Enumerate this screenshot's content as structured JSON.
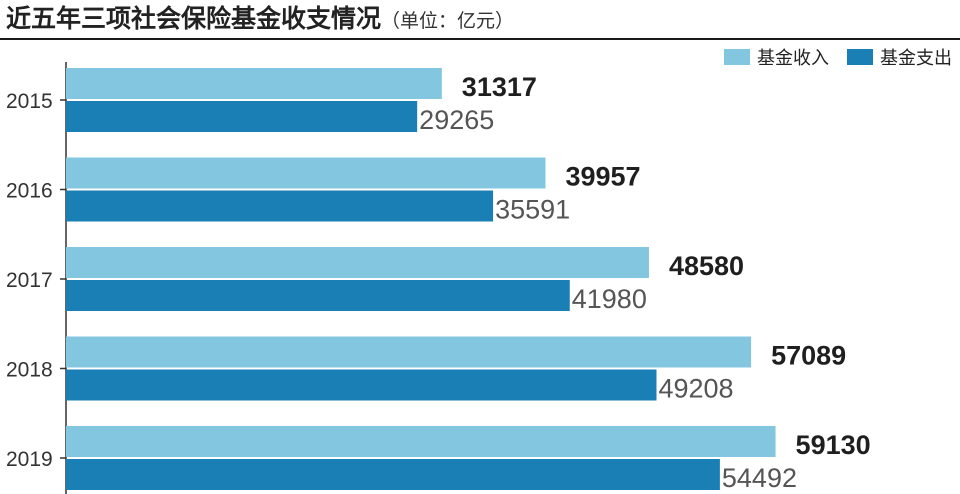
{
  "title": {
    "main": "近五年三项社会保险基金收支情况",
    "unit": "（单位：亿元）"
  },
  "colors": {
    "income": "#83C6E0",
    "expense": "#1A7FB5",
    "axis": "#333333"
  },
  "chart_data": {
    "type": "bar",
    "orientation": "horizontal",
    "title": "近五年三项社会保险基金收支情况（单位：亿元）",
    "xlabel": "",
    "ylabel": "",
    "categories": [
      "2015",
      "2016",
      "2017",
      "2018",
      "2019"
    ],
    "series": [
      {
        "name": "基金收入",
        "values": [
          31317,
          39957,
          48580,
          57089,
          59130
        ]
      },
      {
        "name": "基金支出",
        "values": [
          29265,
          35591,
          41980,
          49208,
          54492
        ]
      }
    ],
    "xlim": [
      0,
      65000
    ],
    "grid": false,
    "legend_position": "top-right",
    "data_labels": true
  }
}
